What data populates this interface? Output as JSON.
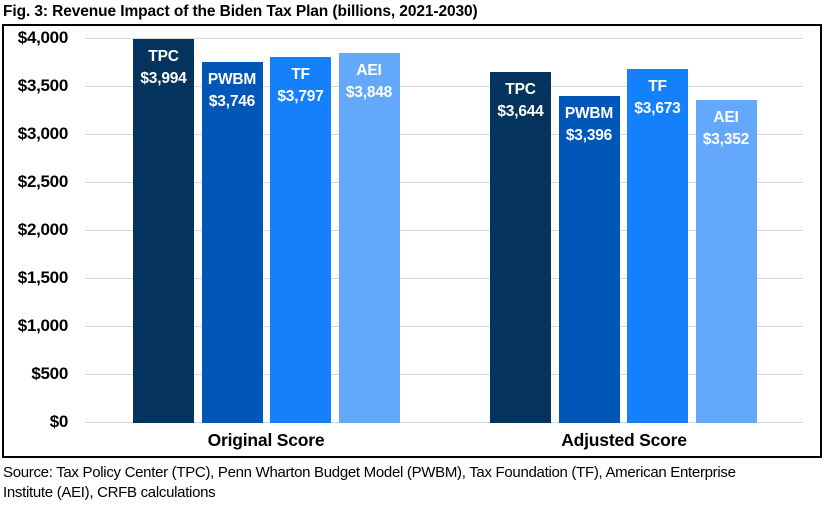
{
  "chart_data": {
    "type": "bar",
    "title": "Fig. 3: Revenue Impact of the Biden Tax Plan (billions, 2021-2030)",
    "categories": [
      "Original Score",
      "Adjusted Score"
    ],
    "series": [
      {
        "name": "TPC",
        "color": "#04345E",
        "values": [
          3994,
          3644
        ],
        "value_labels": [
          "$3,994",
          "$3,644"
        ]
      },
      {
        "name": "PWBM",
        "color": "#0057B8",
        "values": [
          3746,
          3396
        ],
        "value_labels": [
          "$3,746",
          "$3,396"
        ]
      },
      {
        "name": "TF",
        "color": "#1580FB",
        "values": [
          3797,
          3673
        ],
        "value_labels": [
          "$3,797",
          "$3,673"
        ]
      },
      {
        "name": "AEI",
        "color": "#63A8FA",
        "values": [
          3848,
          3352
        ],
        "value_labels": [
          "$3,848",
          "$3,352"
        ]
      }
    ],
    "xlabel": "",
    "ylabel": "",
    "ylim": [
      0,
      4000
    ],
    "y_ticks": [
      {
        "value": 4000,
        "label": "$4,000"
      },
      {
        "value": 3500,
        "label": "$3,500"
      },
      {
        "value": 3000,
        "label": "$3,000"
      },
      {
        "value": 2500,
        "label": "$2,500"
      },
      {
        "value": 2000,
        "label": "$2,000"
      },
      {
        "value": 1500,
        "label": "$1,500"
      },
      {
        "value": 1000,
        "label": "$1,000"
      },
      {
        "value": 500,
        "label": "$500"
      },
      {
        "value": 0,
        "label": "$0"
      }
    ],
    "grid": true,
    "gridline_color": "#d9d9d9",
    "legend_position": "none"
  },
  "source_lines": [
    "Source: Tax Policy Center (TPC), Penn Wharton Budget Model (PWBM), Tax Foundation (TF), American Enterprise",
    "Institute (AEI), CRFB calculations"
  ]
}
